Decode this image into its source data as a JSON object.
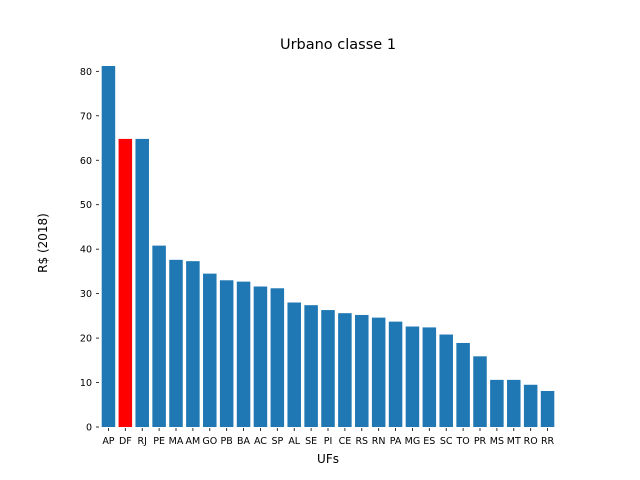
{
  "chart_data": {
    "type": "bar",
    "title": "Urbano classe 1",
    "xlabel": "UFs",
    "ylabel": "R$ (2018)",
    "ylim": [
      0,
      83
    ],
    "yticks": [
      0,
      10,
      20,
      30,
      40,
      50,
      60,
      70,
      80
    ],
    "grid": false,
    "categories": [
      "AP",
      "DF",
      "RJ",
      "PE",
      "MA",
      "AM",
      "GO",
      "PB",
      "BA",
      "AC",
      "SP",
      "AL",
      "SE",
      "PI",
      "CE",
      "RS",
      "RN",
      "PA",
      "MG",
      "ES",
      "SC",
      "TO",
      "PR",
      "MS",
      "MT",
      "RO",
      "RR"
    ],
    "values": [
      81.2,
      64.8,
      64.8,
      40.8,
      37.6,
      37.3,
      34.5,
      33.0,
      32.7,
      31.6,
      31.2,
      28.0,
      27.4,
      26.3,
      25.6,
      25.2,
      24.6,
      23.7,
      22.6,
      22.4,
      20.8,
      18.9,
      15.9,
      10.6,
      10.6,
      9.5,
      8.1
    ],
    "bar_color": "#1f77b4",
    "highlight": {
      "category": "DF",
      "color": "#ff0000"
    }
  }
}
